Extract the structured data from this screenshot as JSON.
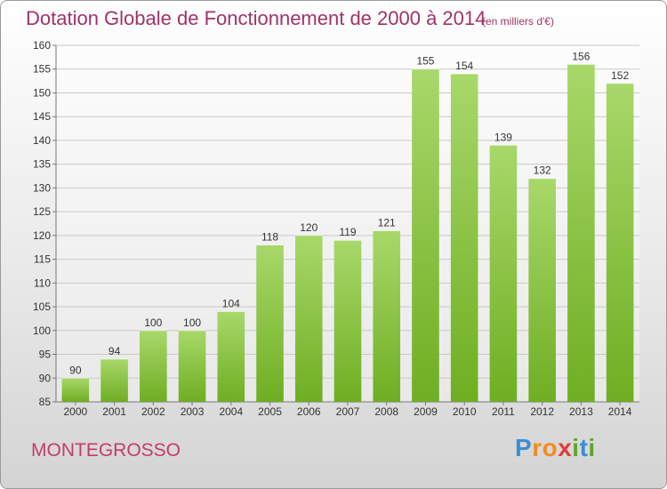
{
  "title": "Dotation Globale de Fonctionnement de 2000 à 2014",
  "subtitle": "(en milliers d'€)",
  "commune": "MONTEGROSSO",
  "logo": {
    "letters": [
      "P",
      "r",
      "o",
      "x",
      "i",
      "t",
      "i"
    ],
    "colors": [
      "#3a8fd4",
      "#f28c1e",
      "#f28c1e",
      "#e23b3b",
      "#5aa82a",
      "#3a8fd4",
      "#5aa82a"
    ]
  },
  "colors": {
    "bar_light": "#a8d86a",
    "bar_dark": "#6fae22",
    "title": "#a03268",
    "grid": "#c9c9c9"
  },
  "chart_data": {
    "type": "bar",
    "categories": [
      "2000",
      "2001",
      "2002",
      "2003",
      "2004",
      "2005",
      "2006",
      "2007",
      "2008",
      "2009",
      "2010",
      "2011",
      "2012",
      "2013",
      "2014"
    ],
    "values": [
      90,
      94,
      100,
      100,
      104,
      118,
      120,
      119,
      121,
      155,
      154,
      139,
      132,
      156,
      152
    ],
    "ylim": [
      85,
      160
    ],
    "yticks": [
      85,
      90,
      95,
      100,
      105,
      110,
      115,
      120,
      125,
      130,
      135,
      140,
      145,
      150,
      155,
      160
    ],
    "grid": true,
    "data_labels": true
  }
}
